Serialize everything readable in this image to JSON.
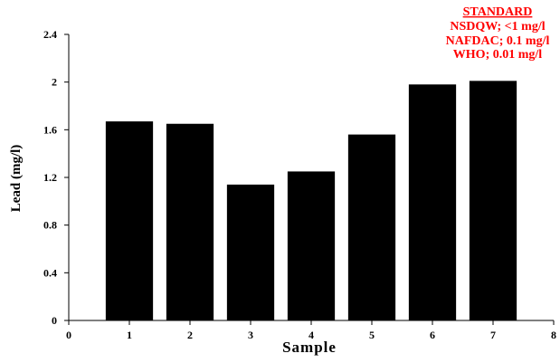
{
  "chart_data": {
    "type": "bar",
    "categories": [
      "1",
      "2",
      "3",
      "4",
      "5",
      "6",
      "7"
    ],
    "x": [
      1,
      2,
      3,
      4,
      5,
      6,
      7
    ],
    "values": [
      1.67,
      1.65,
      1.14,
      1.25,
      1.56,
      1.98,
      2.01
    ],
    "xlabel": "Sample",
    "ylabel": "Lead (mg/l)",
    "xlim": [
      0,
      8
    ],
    "ylim": [
      0,
      2.4
    ],
    "xticks": [
      "0",
      "1",
      "2",
      "3",
      "4",
      "5",
      "6",
      "7",
      "8"
    ],
    "yticks": [
      "0",
      "0.4",
      "0.8",
      "1.2",
      "1.6",
      "2",
      "2.4"
    ],
    "grid": false,
    "bar_color": "#000000",
    "annotation": {
      "heading": "STANDARD",
      "lines": [
        "NSDQW; <1 mg/l",
        "NAFDAC; 0.1 mg/l",
        "WHO; 0.01 mg/l"
      ],
      "color": "#ff0000"
    }
  }
}
